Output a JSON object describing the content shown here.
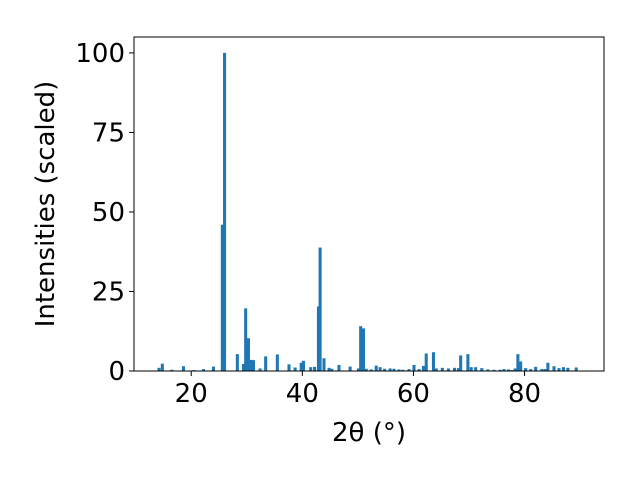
{
  "chart_data": {
    "type": "bar",
    "xlabel": "2θ (°)",
    "ylabel": "Intensities (scaled)",
    "xlim": [
      9.7,
      94.3
    ],
    "ylim": [
      0,
      105
    ],
    "xticks": [
      20,
      40,
      60,
      80
    ],
    "yticks": [
      0,
      25,
      50,
      75,
      100
    ],
    "bar_color": "#1f77b4",
    "bar_width": 0.55,
    "x": [
      14.2,
      14.8,
      16.5,
      18.6,
      20.5,
      22.2,
      24.0,
      25.6,
      26.0,
      28.3,
      29.4,
      29.8,
      30.3,
      30.8,
      31.2,
      32.4,
      33.4,
      35.5,
      37.6,
      38.7,
      39.8,
      40.2,
      41.5,
      42.2,
      42.9,
      43.2,
      43.9,
      44.8,
      45.3,
      46.6,
      48.6,
      50.1,
      50.5,
      51.0,
      51.5,
      52.4,
      53.3,
      54.0,
      54.8,
      55.8,
      56.5,
      57.4,
      58.1,
      59.2,
      60.1,
      61.0,
      61.8,
      62.3,
      63.6,
      64.1,
      65.2,
      66.3,
      67.4,
      68.1,
      68.5,
      69.8,
      70.4,
      71.2,
      72.3,
      73.4,
      74.5,
      75.6,
      76.3,
      77.1,
      77.7,
      78.3,
      78.8,
      79.3,
      80.2,
      81.1,
      82.0,
      83.1,
      83.7,
      84.2,
      85.3,
      86.2,
      87.0,
      87.8,
      89.3
    ],
    "values": [
      1,
      2.3,
      0.4,
      1.5,
      0.3,
      0.6,
      1.4,
      46,
      100,
      5.3,
      2.2,
      19.7,
      10.3,
      3.5,
      3.4,
      0.8,
      4.6,
      5.2,
      2.1,
      1.1,
      2.6,
      3.2,
      1.2,
      1.3,
      20.3,
      38.8,
      4,
      1,
      0.7,
      1.9,
      1.4,
      0.8,
      14.1,
      13.4,
      0.7,
      0.5,
      1.7,
      1.2,
      0.7,
      0.8,
      0.7,
      0.5,
      0.4,
      0.6,
      1.9,
      0.6,
      1.6,
      5.5,
      5.9,
      0.8,
      1,
      0.8,
      1,
      0.9,
      4.9,
      5.3,
      1.2,
      1.2,
      0.9,
      0.5,
      0.4,
      0.4,
      0.6,
      0.5,
      0.3,
      0.8,
      5.3,
      3,
      0.9,
      0.6,
      1.3,
      0.6,
      0.6,
      2.6,
      1.5,
      0.9,
      1.2,
      1,
      1.1
    ]
  }
}
